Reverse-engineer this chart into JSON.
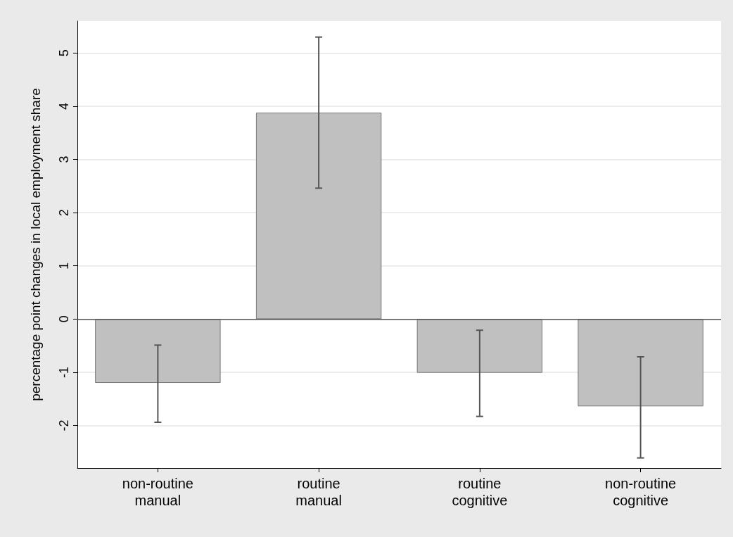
{
  "chart_data": {
    "type": "bar",
    "ylabel": "percentage point changes in local employment share",
    "categories": [
      "non-routine\nmanual",
      "routine\nmanual",
      "routine\ncognitive",
      "non-routine\ncognitive"
    ],
    "values": [
      -1.2,
      3.88,
      -1.01,
      -1.64
    ],
    "errors": [
      [
        -1.94,
        -0.49
      ],
      [
        2.46,
        5.3
      ],
      [
        -1.83,
        -0.21
      ],
      [
        -2.61,
        -0.71
      ]
    ],
    "color": "#c0c0c0",
    "ylim": [
      -2.8,
      5.6
    ],
    "yticks": [
      -2,
      -1,
      0,
      1,
      2,
      3,
      4,
      5
    ],
    "grid": "y",
    "ref_lines": [
      {
        "axis": "y",
        "value": 0,
        "color": "#555555"
      }
    ]
  }
}
